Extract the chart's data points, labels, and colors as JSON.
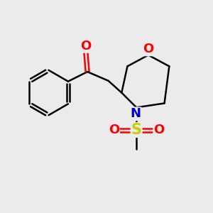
{
  "bg_color": "#ebebeb",
  "bond_color": "#000000",
  "bond_width": 1.8,
  "atom_colors": {
    "O": "#ff0000",
    "N": "#0000cc",
    "S": "#cccc00",
    "C": "#000000"
  },
  "font_size": 13,
  "xlim": [
    -3.0,
    3.5
  ],
  "ylim": [
    -2.8,
    2.5
  ]
}
